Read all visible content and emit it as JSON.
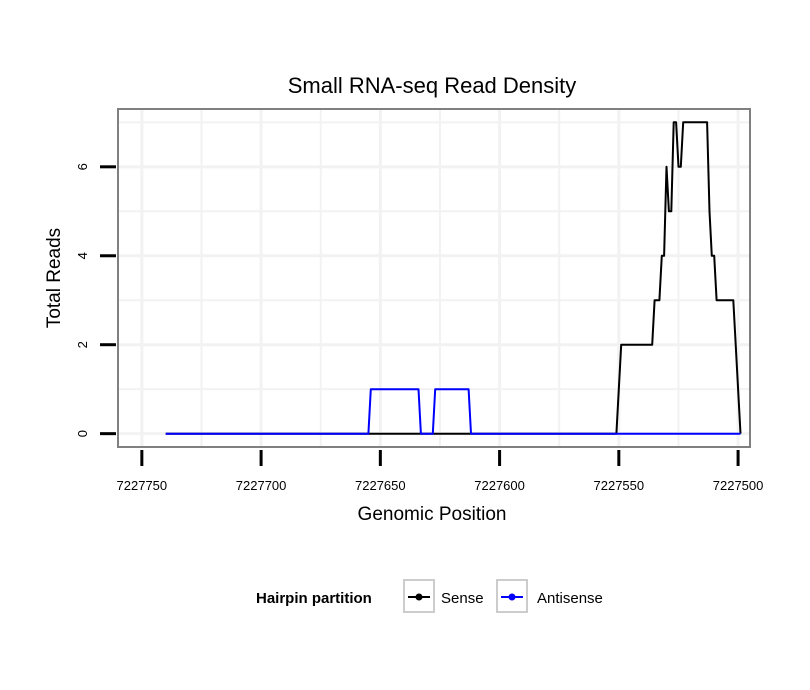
{
  "chart_data": {
    "type": "line",
    "title": "Small RNA-seq Read Density",
    "xlabel": "Genomic Position",
    "ylabel": "Total Reads",
    "x_reversed": true,
    "xlim": [
      7227760,
      7227495
    ],
    "ylim": [
      -0.3,
      7.3
    ],
    "x_ticks": [
      7227750,
      7227700,
      7227650,
      7227600,
      7227550,
      7227500
    ],
    "x_tick_labels": [
      "7227750",
      "7227700",
      "7227650",
      "7227600",
      "7227550",
      "7227500"
    ],
    "y_ticks": [
      0,
      2,
      4,
      6
    ],
    "y_tick_labels": [
      "0",
      "2",
      "4",
      "6"
    ],
    "grid": true,
    "legend": {
      "title": "Hairpin partition",
      "placement": "bottom",
      "entries": [
        "Sense",
        "Antisense"
      ]
    },
    "series": [
      {
        "name": "Sense",
        "color": "#000000",
        "x": [
          7227740,
          7227551,
          7227549,
          7227536,
          7227535,
          7227533,
          7227532,
          7227531,
          7227530,
          7227529,
          7227528,
          7227527,
          7227526,
          7227525,
          7227524,
          7227523,
          7227522,
          7227521,
          7227520,
          7227513,
          7227512,
          7227511,
          7227510,
          7227509,
          7227508,
          7227507,
          7227506,
          7227502,
          7227501,
          7227499
        ],
        "values": [
          0,
          0,
          2,
          2,
          3,
          3,
          4,
          4,
          6,
          5,
          5,
          7,
          7,
          6,
          6,
          7,
          7,
          7,
          7,
          7,
          5,
          4,
          4,
          3,
          3,
          3,
          3,
          3,
          2,
          0
        ]
      },
      {
        "name": "Antisense",
        "color": "#0000ff",
        "x": [
          7227740,
          7227655,
          7227654,
          7227634,
          7227633,
          7227628,
          7227627,
          7227613,
          7227612,
          7227499
        ],
        "values": [
          0,
          0,
          1,
          1,
          0,
          0,
          1,
          1,
          0,
          0
        ]
      }
    ]
  },
  "colors": {
    "panel_border": "#808080",
    "grid": "#f2f2f2",
    "legend_key_border": "#cccccc"
  }
}
